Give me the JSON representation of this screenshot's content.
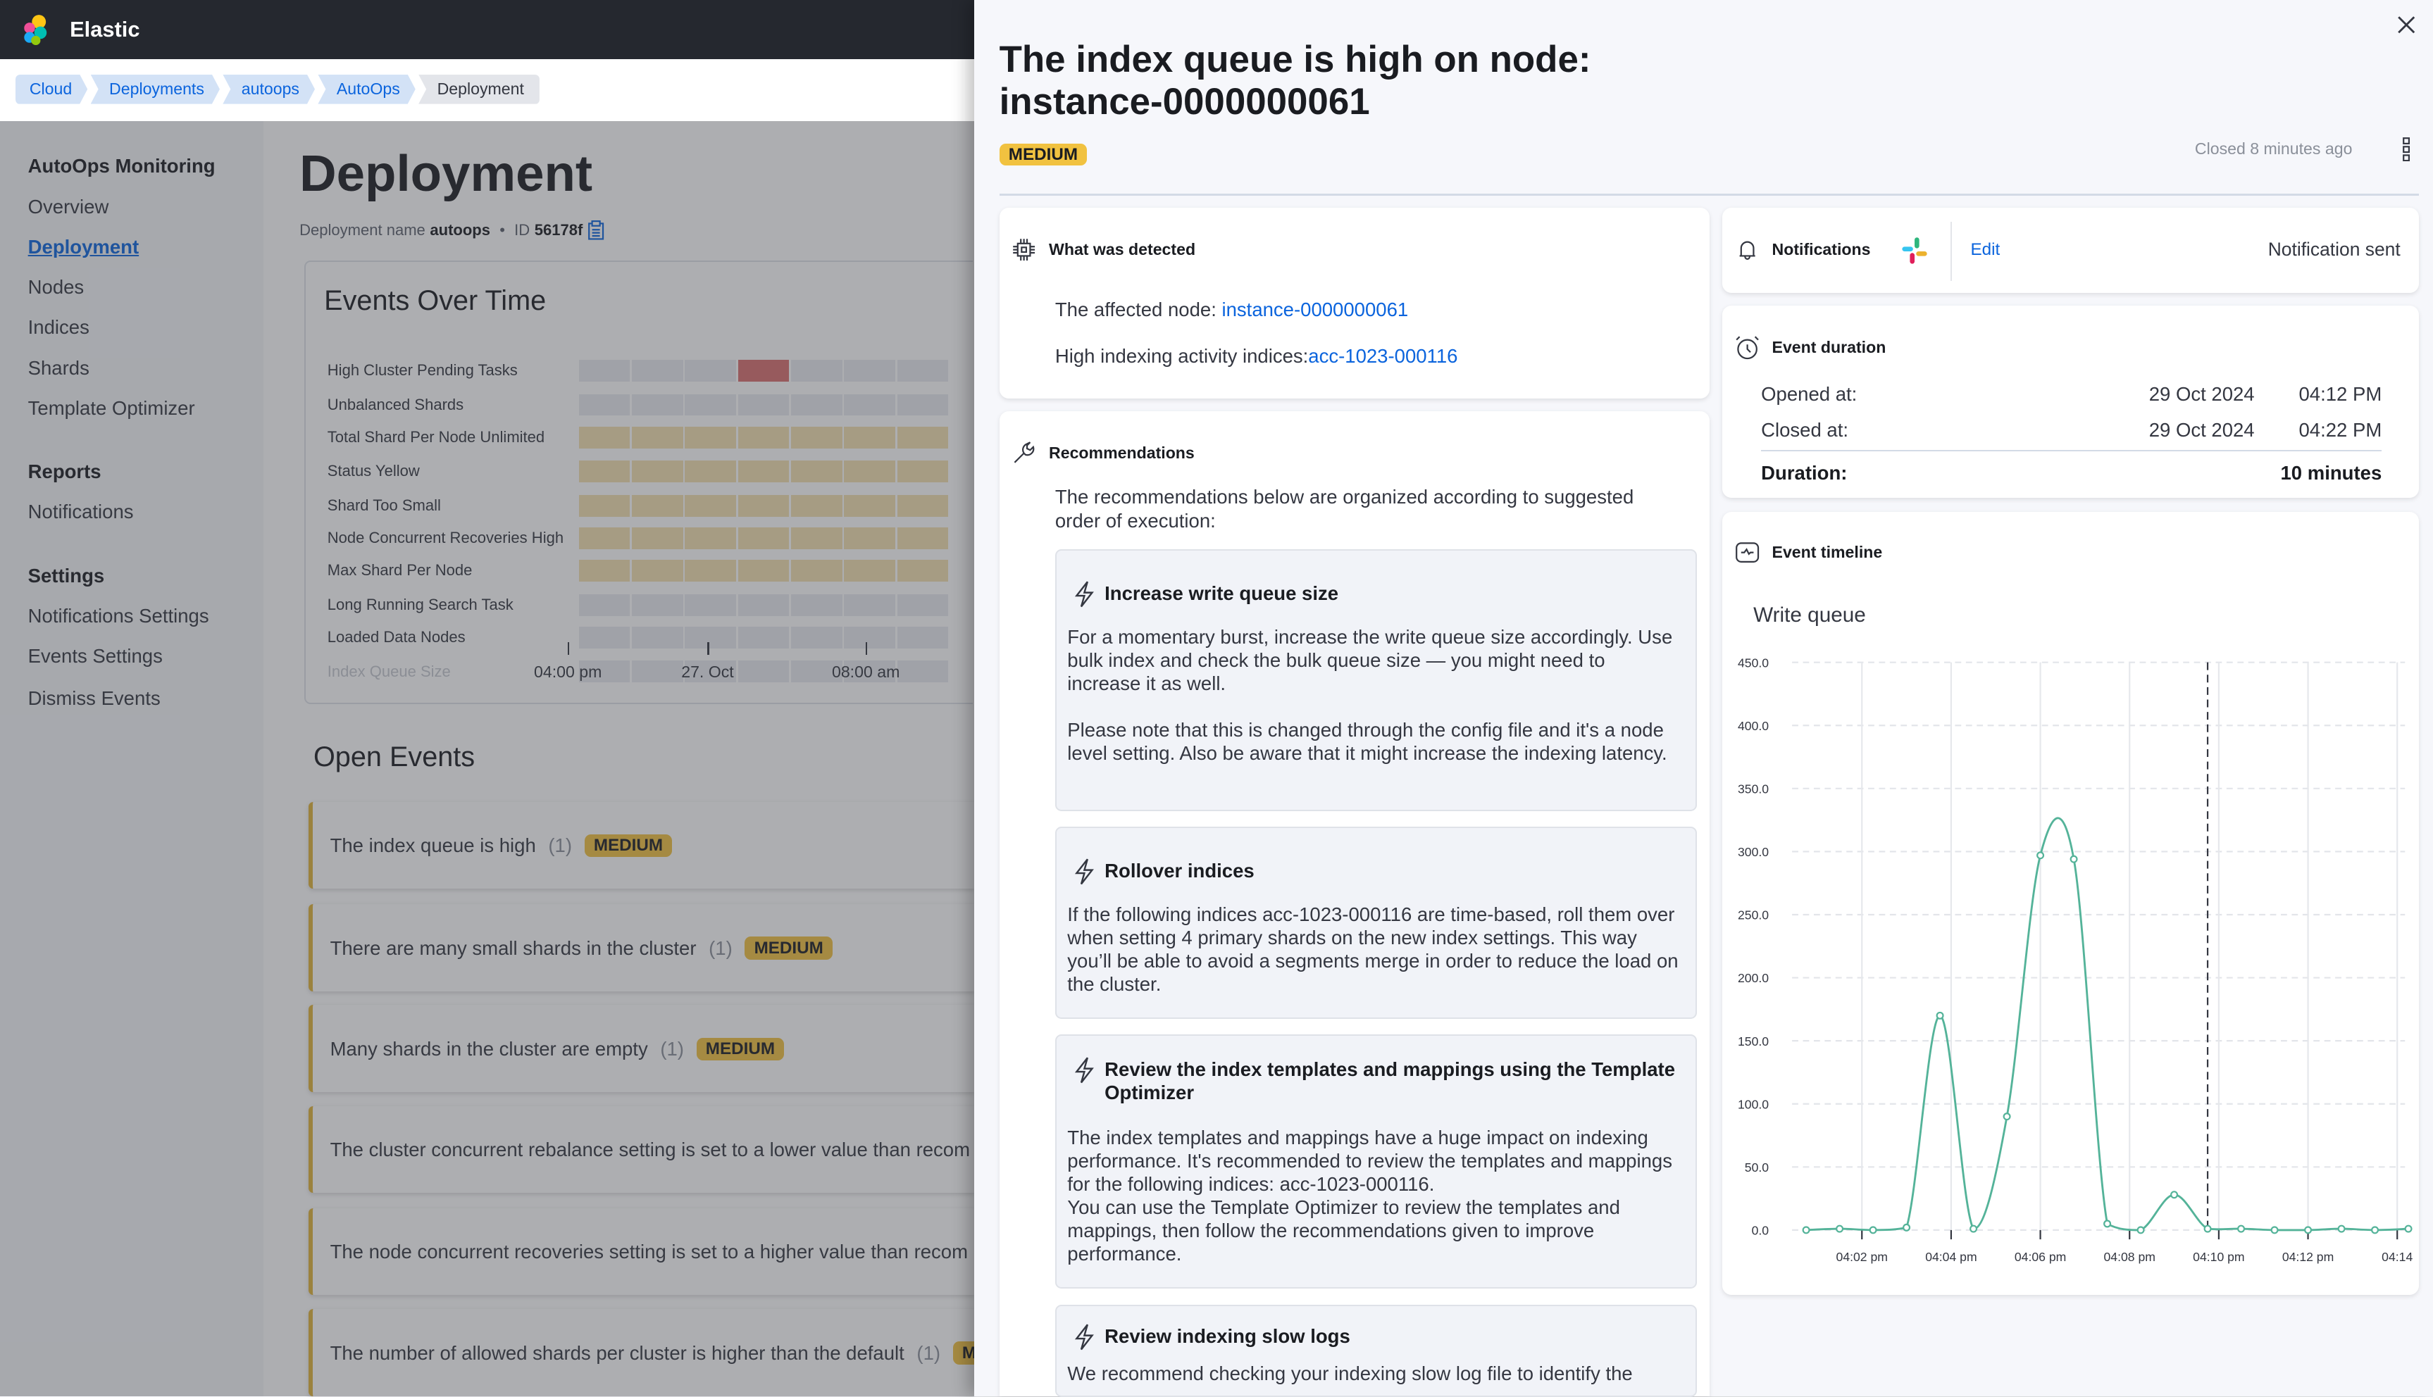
{
  "header": {
    "brand": "Elastic"
  },
  "breadcrumbs": [
    "Cloud",
    "Deployments",
    "autoops",
    "AutoOps",
    "Deployment"
  ],
  "sidebar": {
    "sections": [
      {
        "title": "AutoOps Monitoring",
        "items": [
          "Overview",
          "Deployment",
          "Nodes",
          "Indices",
          "Shards",
          "Template Optimizer"
        ],
        "active": "Deployment"
      },
      {
        "title": "Reports",
        "items": [
          "Notifications"
        ]
      },
      {
        "title": "Settings",
        "items": [
          "Notifications Settings",
          "Events Settings",
          "Dismiss Events"
        ]
      }
    ]
  },
  "page": {
    "title": "Deployment",
    "name_label": "Deployment name",
    "name_value": "autoops",
    "id_label": "ID",
    "id_value": "56178f"
  },
  "events_over_time": {
    "title": "Events Over Time",
    "rows": [
      "High Cluster Pending Tasks",
      "Unbalanced Shards",
      "Total Shard Per Node Unlimited",
      "Status Yellow",
      "Shard Too Small",
      "Node Concurrent Recoveries High",
      "Max Shard Per Node",
      "Long Running Search Task",
      "Loaded Data Nodes",
      "Index Queue Size"
    ],
    "time_labels": [
      "04:00 pm",
      "27. Oct",
      "08:00 am"
    ],
    "colors": {
      "empty": "#e9ebef",
      "medium": "#f3e0b0",
      "high": "#d96f6f"
    }
  },
  "open_events": {
    "title": "Open Events",
    "items": [
      {
        "text": "The index queue is high",
        "count": "(1)",
        "severity": "MEDIUM"
      },
      {
        "text": "There are many small shards in the cluster",
        "count": "(1)",
        "severity": "MEDIUM"
      },
      {
        "text": "Many shards in the cluster are empty",
        "count": "(1)",
        "severity": "MEDIUM"
      },
      {
        "text": "The cluster concurrent rebalance setting is set to a lower value than recom",
        "count": "",
        "severity": ""
      },
      {
        "text": "The node concurrent recoveries setting is set to a higher value than recom",
        "count": "",
        "severity": ""
      },
      {
        "text": "The number of allowed shards per cluster is higher than the default",
        "count": "(1)",
        "severity": "MEDIUM"
      }
    ]
  },
  "flyout": {
    "title": "The index queue is high on node: instance-0000000061",
    "severity": "MEDIUM",
    "status": "Closed 8 minutes ago",
    "detected": {
      "title": "What was detected",
      "node_label": "The affected node: ",
      "node_value": "instance-0000000061",
      "indices_label": "High indexing activity indices:",
      "indices_value": "acc-1023-000116"
    },
    "recommendations": {
      "title": "Recommendations",
      "intro": "The recommendations below are organized according to suggested order of execution:",
      "items": [
        {
          "title": "Increase write queue size",
          "body": "For a momentary burst, increase the write queue size accordingly. Use bulk index and check the bulk queue size — you might need to increase it as well.\n\nPlease note that this is changed through the config file and it's a node level setting. Also be aware that it might increase the indexing latency."
        },
        {
          "title": "Rollover indices",
          "body": "If the following indices acc-1023-000116 are time-based, roll them over when setting 4 primary shards on the new index settings. This way you’ll be able to avoid a segments merge in order to reduce the load on the cluster."
        },
        {
          "title": "Review the index templates and mappings using the Template Optimizer",
          "body": "The index templates and mappings have a huge impact on indexing performance. It's recommended to review the templates and mappings for the following indices: acc-1023-000116.\nYou can use the Template Optimizer to review the templates and mappings, then follow the recommendations given to improve performance."
        },
        {
          "title": "Review indexing slow logs",
          "body": "We recommend checking your indexing slow log file to identify the"
        }
      ]
    },
    "notifications": {
      "title": "Notifications",
      "edit": "Edit",
      "status": "Notification sent"
    },
    "duration": {
      "title": "Event duration",
      "opened_label": "Opened at:",
      "opened_date": "29 Oct 2024",
      "opened_time": "04:12 PM",
      "closed_label": "Closed at:",
      "closed_date": "29 Oct 2024",
      "closed_time": "04:22 PM",
      "duration_label": "Duration:",
      "duration_value": "10 minutes"
    },
    "timeline": {
      "title": "Event timeline"
    }
  },
  "chart_data": {
    "type": "line",
    "title": "Write queue",
    "x": [
      "04:00:45 pm",
      "04:01:30 pm",
      "04:02:15 pm",
      "04:03:00 pm",
      "04:03:45 pm",
      "04:04:30 pm",
      "04:05:15 pm",
      "04:06:00 pm",
      "04:06:45 pm",
      "04:07:30 pm",
      "04:08:15 pm",
      "04:09:00 pm",
      "04:09:45 pm",
      "04:10:30 pm",
      "04:11:15 pm",
      "04:12:00 pm",
      "04:12:45 pm",
      "04:13:30 pm",
      "04:14:15 pm"
    ],
    "values": [
      0,
      1,
      0,
      2,
      170,
      1,
      90,
      297,
      294,
      5,
      0,
      28,
      1,
      1,
      0,
      0,
      1,
      0,
      1
    ],
    "ylim": [
      0,
      450
    ],
    "yticks": [
      "0.0",
      "50.0",
      "100.0",
      "150.0",
      "200.0",
      "250.0",
      "300.0",
      "350.0",
      "400.0",
      "450.0"
    ],
    "xticks": [
      "04:02 pm",
      "04:04 pm",
      "04:06 pm",
      "04:08 pm",
      "04:10 pm",
      "04:12 pm",
      "04:14"
    ],
    "marker_time": "04:09:45 pm",
    "grid": true,
    "color": "#54b399"
  }
}
